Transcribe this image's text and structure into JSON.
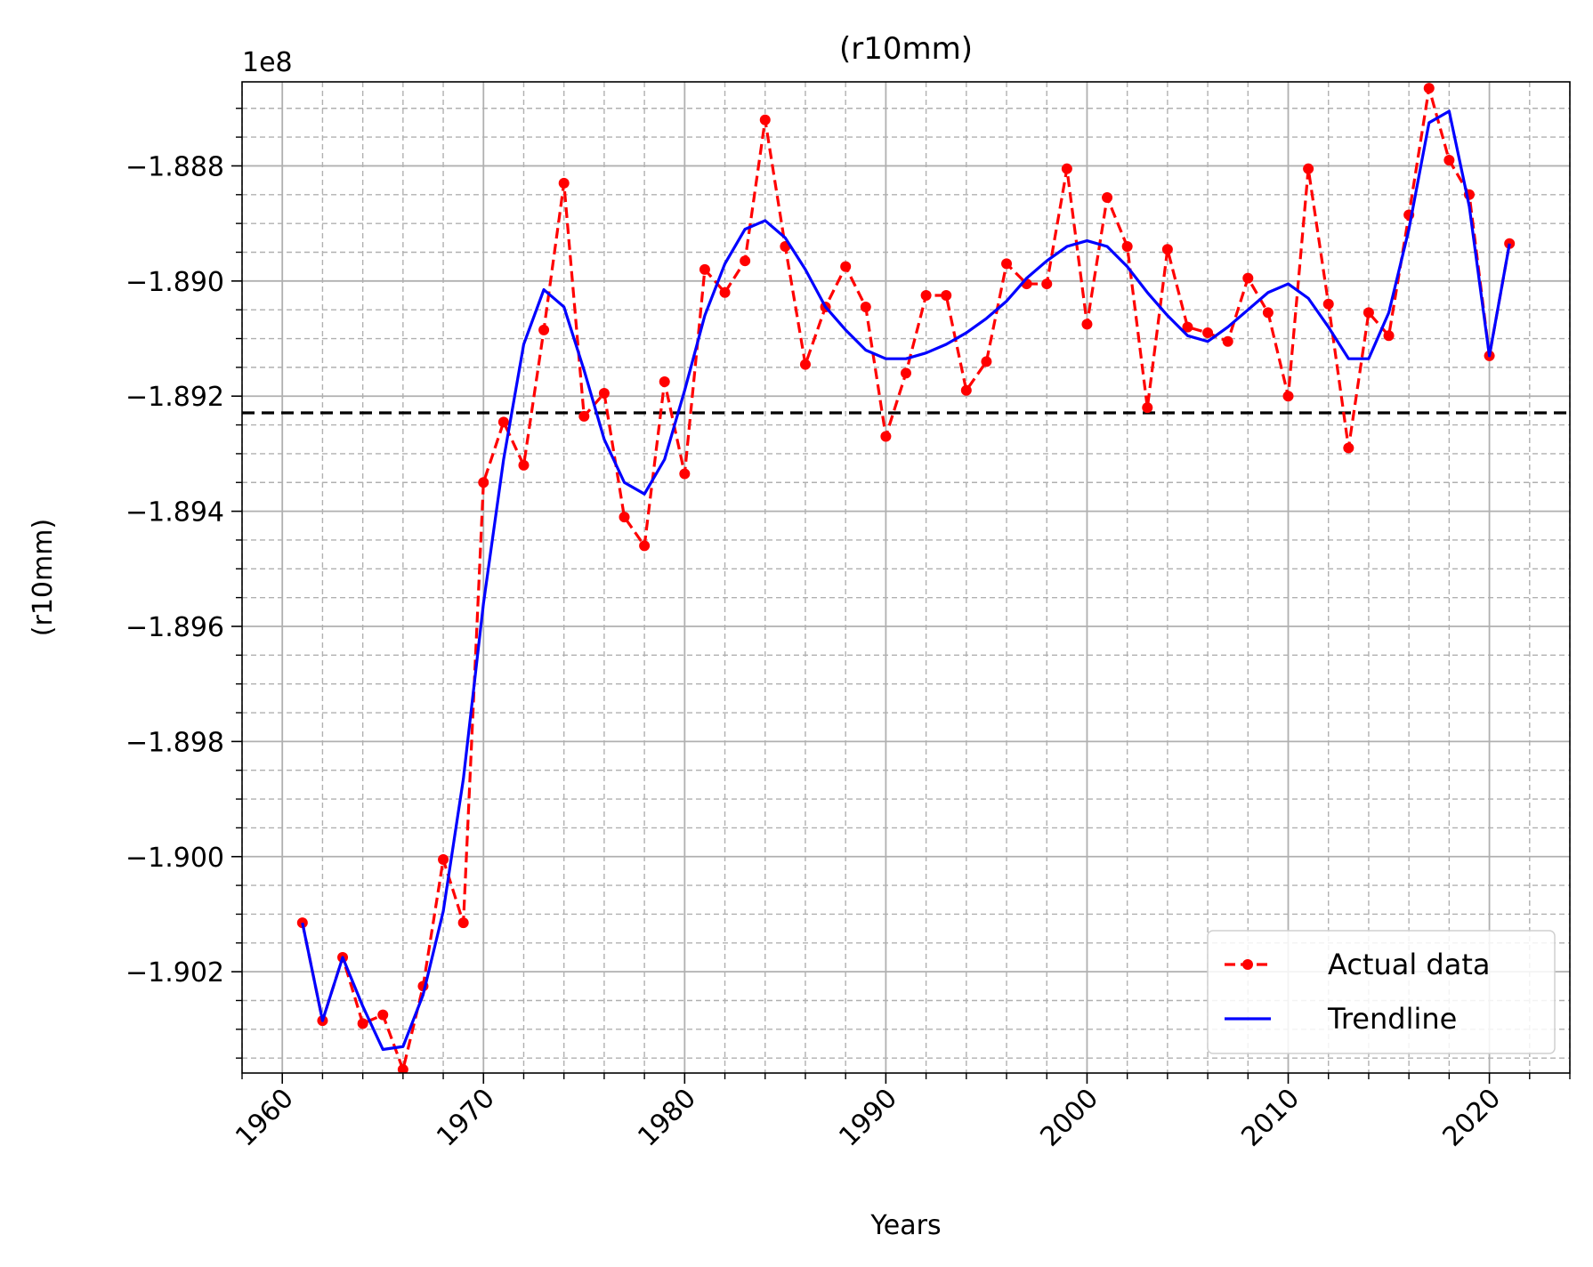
{
  "chart_data": {
    "type": "line",
    "title": "(r10mm)",
    "xlabel": "Years",
    "ylabel": "(r10mm)",
    "y_multiplier_label": "1e8",
    "xlim": [
      1958,
      2024
    ],
    "ylim": [
      -1.90376,
      -1.88654
    ],
    "x_ticks": [
      1960,
      1970,
      1980,
      1990,
      2000,
      2010,
      2020
    ],
    "y_ticks": [
      -1.902,
      -1.9,
      -1.898,
      -1.896,
      -1.894,
      -1.892,
      -1.89,
      -1.888
    ],
    "y_tick_labels": [
      "−1.902",
      "−1.900",
      "−1.898",
      "−1.896",
      "−1.894",
      "−1.892",
      "−1.890",
      "−1.888"
    ],
    "grid": true,
    "reference_line": -1.89229,
    "legend_position": "lower-right",
    "series": [
      {
        "name": "Actual data",
        "color": "#ff0000",
        "style": "dashed-with-markers",
        "x": [
          1961,
          1962,
          1963,
          1964,
          1965,
          1966,
          1967,
          1968,
          1969,
          1970,
          1971,
          1972,
          1973,
          1974,
          1975,
          1976,
          1977,
          1978,
          1979,
          1980,
          1981,
          1982,
          1983,
          1984,
          1985,
          1986,
          1987,
          1988,
          1989,
          1990,
          1991,
          1992,
          1993,
          1994,
          1995,
          1996,
          1997,
          1998,
          1999,
          2000,
          2001,
          2002,
          2003,
          2004,
          2005,
          2006,
          2007,
          2008,
          2009,
          2010,
          2011,
          2012,
          2013,
          2014,
          2015,
          2016,
          2017,
          2018,
          2019,
          2020,
          2021
        ],
        "y": [
          -1.90115,
          -1.90285,
          -1.90175,
          -1.9029,
          -1.90275,
          -1.9037,
          -1.90225,
          -1.90005,
          -1.90115,
          -1.8935,
          -1.89245,
          -1.8932,
          -1.89085,
          -1.8883,
          -1.89235,
          -1.89195,
          -1.8941,
          -1.8946,
          -1.89175,
          -1.89335,
          -1.8898,
          -1.8902,
          -1.88965,
          -1.8872,
          -1.8894,
          -1.89145,
          -1.89045,
          -1.88975,
          -1.89045,
          -1.8927,
          -1.8916,
          -1.89025,
          -1.89025,
          -1.8919,
          -1.8914,
          -1.8897,
          -1.89005,
          -1.89005,
          -1.88805,
          -1.89075,
          -1.88855,
          -1.8894,
          -1.8922,
          -1.88945,
          -1.8908,
          -1.8909,
          -1.89105,
          -1.88995,
          -1.89055,
          -1.892,
          -1.88805,
          -1.8904,
          -1.8929,
          -1.89055,
          -1.89095,
          -1.88885,
          -1.88665,
          -1.8879,
          -1.8885,
          -1.8913,
          -1.88935
        ]
      },
      {
        "name": "Trendline",
        "color": "#0000ff",
        "style": "solid",
        "x": [
          1961,
          1962,
          1963,
          1964,
          1965,
          1966,
          1967,
          1968,
          1969,
          1970,
          1971,
          1972,
          1973,
          1974,
          1975,
          1976,
          1977,
          1978,
          1979,
          1980,
          1981,
          1982,
          1983,
          1984,
          1985,
          1986,
          1987,
          1988,
          1989,
          1990,
          1991,
          1992,
          1993,
          1994,
          1995,
          1996,
          1997,
          1998,
          1999,
          2000,
          2001,
          2002,
          2003,
          2004,
          2005,
          2006,
          2007,
          2008,
          2009,
          2010,
          2011,
          2012,
          2013,
          2014,
          2015,
          2016,
          2017,
          2018,
          2019,
          2020,
          2021
        ],
        "y": [
          -1.90115,
          -1.90285,
          -1.90175,
          -1.9026,
          -1.90335,
          -1.9033,
          -1.9024,
          -1.90095,
          -1.89865,
          -1.8956,
          -1.8931,
          -1.8911,
          -1.89015,
          -1.89045,
          -1.89155,
          -1.89275,
          -1.8935,
          -1.8937,
          -1.8931,
          -1.8919,
          -1.8906,
          -1.8897,
          -1.8891,
          -1.88895,
          -1.88925,
          -1.8898,
          -1.89045,
          -1.89085,
          -1.8912,
          -1.89135,
          -1.89135,
          -1.89125,
          -1.8911,
          -1.8909,
          -1.89065,
          -1.89035,
          -1.88995,
          -1.88965,
          -1.8894,
          -1.8893,
          -1.8894,
          -1.88975,
          -1.8902,
          -1.8906,
          -1.89095,
          -1.89105,
          -1.8908,
          -1.8905,
          -1.8902,
          -1.89005,
          -1.8903,
          -1.8908,
          -1.89135,
          -1.89135,
          -1.89055,
          -1.8891,
          -1.88725,
          -1.88705,
          -1.8887,
          -1.8913,
          -1.88935
        ]
      }
    ]
  }
}
